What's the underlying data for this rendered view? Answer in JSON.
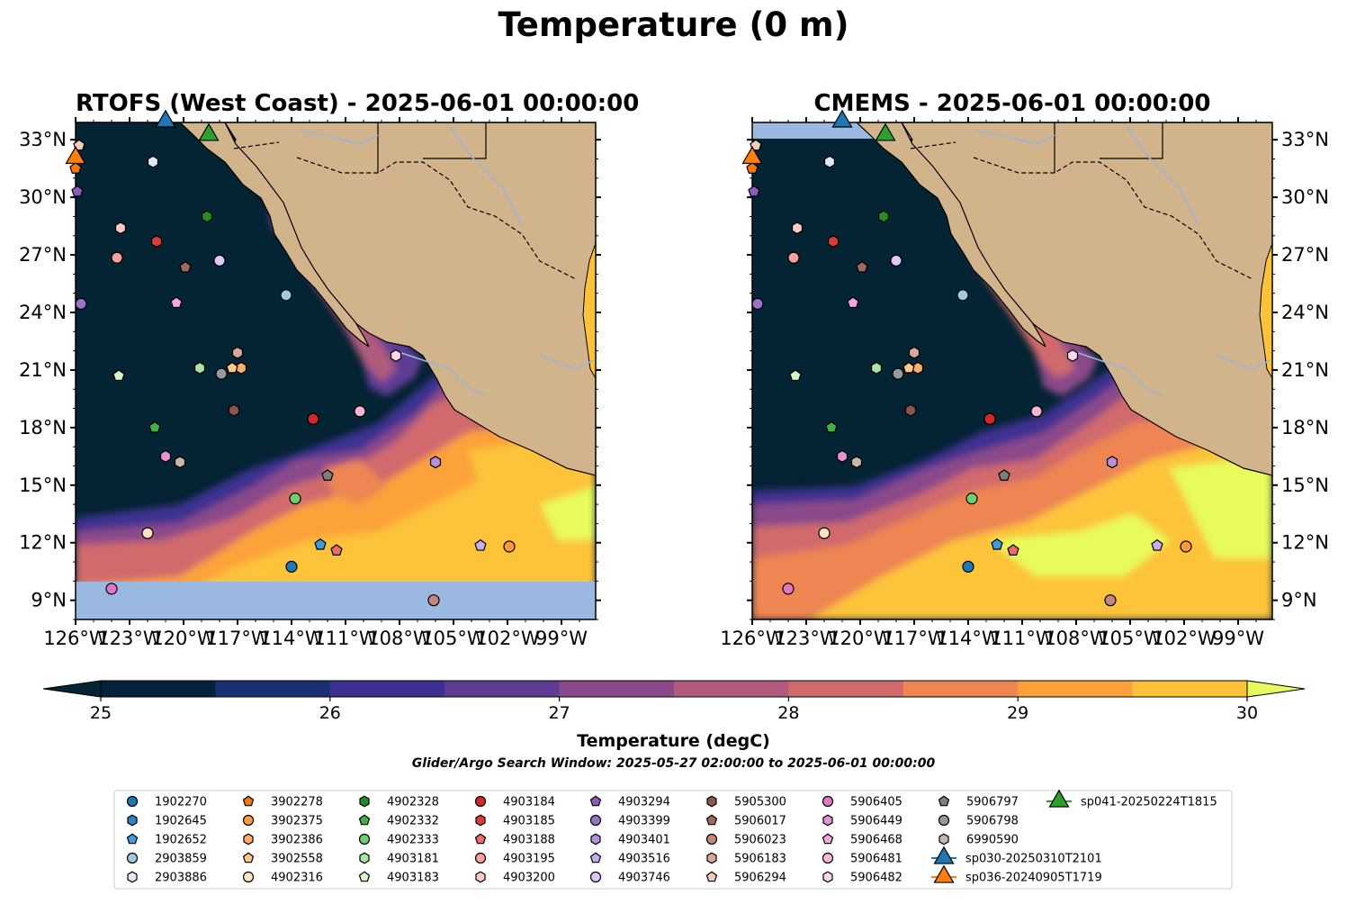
{
  "title": "Temperature (0 m)",
  "panels": [
    {
      "title": "RTOFS (West Coast) - 2025-06-01 00:00:00"
    },
    {
      "title": "CMEMS - 2025-06-01 00:00:00"
    }
  ],
  "lat_ticks": [
    {
      "lat": 33,
      "label": "33°N"
    },
    {
      "lat": 30,
      "label": "30°N"
    },
    {
      "lat": 27,
      "label": "27°N"
    },
    {
      "lat": 24,
      "label": "24°N"
    },
    {
      "lat": 21,
      "label": "21°N"
    },
    {
      "lat": 18,
      "label": "18°N"
    },
    {
      "lat": 15,
      "label": "15°N"
    },
    {
      "lat": 12,
      "label": "12°N"
    },
    {
      "lat": 9,
      "label": "9°N"
    }
  ],
  "lon_ticks": [
    {
      "lon": -126,
      "label": "126°W"
    },
    {
      "lon": -123,
      "label": "123°W"
    },
    {
      "lon": -120,
      "label": "120°W"
    },
    {
      "lon": -117,
      "label": "117°W"
    },
    {
      "lon": -114,
      "label": "114°W"
    },
    {
      "lon": -111,
      "label": "111°W"
    },
    {
      "lon": -108,
      "label": "108°W"
    },
    {
      "lon": -105,
      "label": "105°W"
    },
    {
      "lon": -102,
      "label": "102°W"
    },
    {
      "lon": -99,
      "label": "99°W"
    }
  ],
  "extent": {
    "lon_min": -126,
    "lon_max": -97.1,
    "lat_min": 8.0,
    "lat_max": 33.9
  },
  "colorbar": {
    "label": "Temperature (degC)",
    "min": 25,
    "max": 30,
    "ticks": [
      "25",
      "26",
      "27",
      "28",
      "29",
      "30"
    ],
    "colors": [
      "#06223a",
      "#1c2f73",
      "#3c3090",
      "#5f3c94",
      "#8a4a8a",
      "#b05a7e",
      "#d06a6c",
      "#ee8552",
      "#fda23a",
      "#fcc33a"
    ],
    "under_color": "#042333",
    "over_color": "#e8fa5b"
  },
  "search_window": "Glider/Argo Search Window: 2025-05-27 02:00:00 to 2025-06-01 00:00:00",
  "colors": {
    "land": "#d2b48c",
    "nodata": "#9ab8e0",
    "river": "#9ab5d8"
  },
  "markers": [
    {
      "id": "1902270",
      "marker": "circle",
      "color": "#1f77b4",
      "lon": -114.0,
      "lat": 10.75
    },
    {
      "id": "1902645",
      "marker": "hexagon",
      "color": "#2f82c4",
      "lon": -126.0,
      "lat": 32.0
    },
    {
      "id": "1902652",
      "marker": "pentagon",
      "color": "#3b9ce0",
      "lon": -112.4,
      "lat": 11.9
    },
    {
      "id": "2903859",
      "marker": "circle",
      "color": "#9ecae1",
      "lon": -114.3,
      "lat": 24.9
    },
    {
      "id": "2903886",
      "marker": "hexagon",
      "color": "#deebf7",
      "lon": -121.7,
      "lat": 31.85
    },
    {
      "id": "3902278",
      "marker": "pentagon",
      "color": "#f07a12",
      "lon": -126.0,
      "lat": 31.5
    },
    {
      "id": "3902375",
      "marker": "circle",
      "color": "#fd9a3c",
      "lon": -101.9,
      "lat": 11.8
    },
    {
      "id": "3902386",
      "marker": "hexagon",
      "color": "#fdae6b",
      "lon": -116.8,
      "lat": 21.1
    },
    {
      "id": "3902558",
      "marker": "pentagon",
      "color": "#fdc888",
      "lon": -117.3,
      "lat": 21.1
    },
    {
      "id": "4902316",
      "marker": "circle",
      "color": "#fee0c2",
      "lon": -122.0,
      "lat": 12.5
    },
    {
      "id": "4902328",
      "marker": "hexagon",
      "color": "#238b23",
      "lon": -118.7,
      "lat": 29.0
    },
    {
      "id": "4902332",
      "marker": "pentagon",
      "color": "#43b043",
      "lon": -121.6,
      "lat": 18.0
    },
    {
      "id": "4902333",
      "marker": "circle",
      "color": "#6fcf6f",
      "lon": -113.8,
      "lat": 14.3
    },
    {
      "id": "4903181",
      "marker": "hexagon",
      "color": "#a6e5a6",
      "lon": -119.1,
      "lat": 21.1
    },
    {
      "id": "4903183",
      "marker": "pentagon",
      "color": "#d2f7c2",
      "lon": -123.6,
      "lat": 20.7
    },
    {
      "id": "4903184",
      "marker": "circle",
      "color": "#d62728",
      "lon": -112.8,
      "lat": 18.45
    },
    {
      "id": "4903185",
      "marker": "hexagon",
      "color": "#dc3a3a",
      "lon": -121.5,
      "lat": 27.7
    },
    {
      "id": "4903188",
      "marker": "pentagon",
      "color": "#ef6a6a",
      "lon": -111.5,
      "lat": 11.6
    },
    {
      "id": "4903195",
      "marker": "circle",
      "color": "#f7a0a0",
      "lon": -123.7,
      "lat": 26.85
    },
    {
      "id": "4903200",
      "marker": "hexagon",
      "color": "#fcc9c4",
      "lon": -123.5,
      "lat": 28.4
    },
    {
      "id": "4903294",
      "marker": "pentagon",
      "color": "#8a5cb8",
      "lon": -125.9,
      "lat": 30.3
    },
    {
      "id": "4903399",
      "marker": "circle",
      "color": "#9a72c8",
      "lon": -125.7,
      "lat": 24.45
    },
    {
      "id": "4903401",
      "marker": "hexagon",
      "color": "#b590dc",
      "lon": -106.0,
      "lat": 16.2
    },
    {
      "id": "4903516",
      "marker": "pentagon",
      "color": "#c7acf0",
      "lon": -103.5,
      "lat": 11.85
    },
    {
      "id": "4903746",
      "marker": "circle",
      "color": "#e0c8f8",
      "lon": -118.0,
      "lat": 26.7
    },
    {
      "id": "5905300",
      "marker": "hexagon",
      "color": "#8c564b",
      "lon": -117.2,
      "lat": 18.9
    },
    {
      "id": "5906017",
      "marker": "pentagon",
      "color": "#9e6a5c",
      "lon": -119.9,
      "lat": 26.35
    },
    {
      "id": "5906023",
      "marker": "circle",
      "color": "#c4867a",
      "lon": -106.1,
      "lat": 9.0
    },
    {
      "id": "5906183",
      "marker": "hexagon",
      "color": "#d8a89a",
      "lon": -117.0,
      "lat": 21.9
    },
    {
      "id": "5906294",
      "marker": "pentagon",
      "color": "#f5ccba",
      "lon": -125.8,
      "lat": 32.7
    },
    {
      "id": "5906405",
      "marker": "circle",
      "color": "#e377c2",
      "lon": -124.0,
      "lat": 9.6
    },
    {
      "id": "5906449",
      "marker": "hexagon",
      "color": "#e592d0",
      "lon": -121.0,
      "lat": 16.5
    },
    {
      "id": "5906468",
      "marker": "pentagon",
      "color": "#f0a8dd",
      "lon": -120.4,
      "lat": 24.5
    },
    {
      "id": "5906481",
      "marker": "circle",
      "color": "#f7b6d2",
      "lon": -110.2,
      "lat": 18.85
    },
    {
      "id": "5906482",
      "marker": "hexagon",
      "color": "#fbd6ec",
      "lon": -108.2,
      "lat": 21.75
    },
    {
      "id": "5906797",
      "marker": "pentagon",
      "color": "#7f7f7f",
      "lon": -112.0,
      "lat": 15.5
    },
    {
      "id": "5906798",
      "marker": "circle",
      "color": "#999999",
      "lon": -117.9,
      "lat": 20.8
    },
    {
      "id": "6990590",
      "marker": "hexagon",
      "color": "#c7b7b1",
      "lon": -120.2,
      "lat": 16.2
    },
    {
      "id": "sp030-20250310T2101",
      "marker": "triangle",
      "color": "#1f77b4",
      "lon": -121.0,
      "lat": 33.95
    },
    {
      "id": "sp036-20240905T1719",
      "marker": "triangle",
      "color": "#ff7f0e",
      "lon": -126.0,
      "lat": 32.05
    },
    {
      "id": "sp041-20250224T1815",
      "marker": "triangle",
      "color": "#2ca02c",
      "lon": -118.6,
      "lat": 33.25
    }
  ]
}
